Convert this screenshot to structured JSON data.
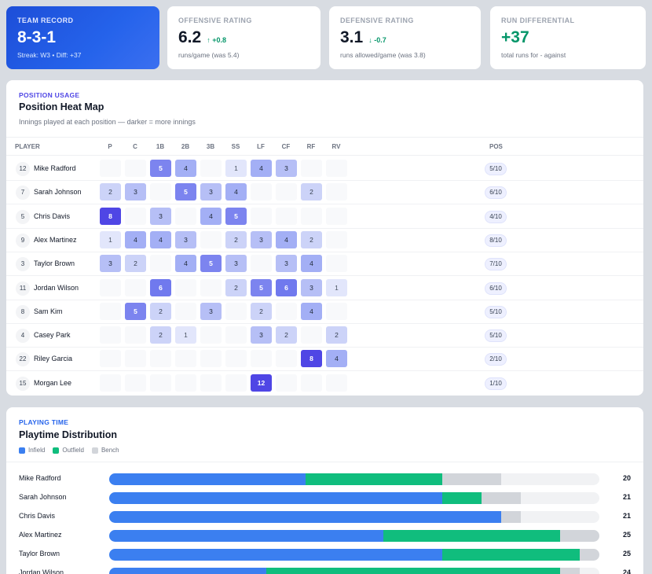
{
  "kpis": [
    {
      "label": "TEAM RECORD",
      "value": "8-3-1",
      "delta": "",
      "sub": "Streak: W3 • Diff: +37"
    },
    {
      "label": "OFFENSIVE RATING",
      "value": "6.2",
      "delta": "↑ +0.8",
      "sub": "runs/game (was 5.4)"
    },
    {
      "label": "DEFENSIVE RATING",
      "value": "3.1",
      "delta": "↓ -0.7",
      "sub": "runs allowed/game (was 3.8)"
    },
    {
      "label": "RUN DIFFERENTIAL",
      "value": "+37",
      "delta": "",
      "sub": "total runs for - against"
    }
  ],
  "heatmap": {
    "eyebrow": "POSITION USAGE",
    "title": "Position Heat Map",
    "subtitle": "Innings played at each position — darker = more innings",
    "headers": {
      "player": "PLAYER",
      "positions": [
        "P",
        "C",
        "1B",
        "2B",
        "3B",
        "SS",
        "LF",
        "CF",
        "RF",
        "RV"
      ],
      "pos": "POS"
    },
    "rows": [
      {
        "num": "12",
        "name": "Mike Radford",
        "cells": [
          0,
          0,
          5,
          4,
          0,
          1,
          4,
          3,
          0,
          0
        ],
        "pos": "5/10"
      },
      {
        "num": "7",
        "name": "Sarah Johnson",
        "cells": [
          2,
          3,
          0,
          5,
          3,
          4,
          0,
          0,
          2,
          0
        ],
        "pos": "6/10"
      },
      {
        "num": "5",
        "name": "Chris Davis",
        "cells": [
          8,
          0,
          3,
          0,
          4,
          5,
          0,
          0,
          0,
          0
        ],
        "pos": "4/10"
      },
      {
        "num": "9",
        "name": "Alex Martinez",
        "cells": [
          1,
          4,
          4,
          3,
          0,
          2,
          3,
          4,
          2,
          0
        ],
        "pos": "8/10"
      },
      {
        "num": "3",
        "name": "Taylor Brown",
        "cells": [
          3,
          2,
          0,
          4,
          5,
          3,
          0,
          3,
          4,
          0
        ],
        "pos": "7/10"
      },
      {
        "num": "11",
        "name": "Jordan Wilson",
        "cells": [
          0,
          0,
          6,
          0,
          0,
          2,
          5,
          6,
          3,
          1
        ],
        "pos": "6/10"
      },
      {
        "num": "8",
        "name": "Sam Kim",
        "cells": [
          0,
          5,
          2,
          0,
          3,
          0,
          2,
          0,
          4,
          0
        ],
        "pos": "5/10"
      },
      {
        "num": "4",
        "name": "Casey Park",
        "cells": [
          0,
          0,
          2,
          1,
          0,
          0,
          3,
          2,
          0,
          2
        ],
        "pos": "5/10"
      },
      {
        "num": "22",
        "name": "Riley Garcia",
        "cells": [
          0,
          0,
          0,
          0,
          0,
          0,
          0,
          0,
          8,
          4
        ],
        "pos": "2/10"
      },
      {
        "num": "15",
        "name": "Morgan Lee",
        "cells": [
          0,
          0,
          0,
          0,
          0,
          0,
          12,
          0,
          0,
          0
        ],
        "pos": "1/10"
      }
    ]
  },
  "playtime": {
    "eyebrow": "PLAYING TIME",
    "title": "Playtime Distribution",
    "legend": [
      {
        "label": "Infield",
        "color": "#3b7ff0"
      },
      {
        "label": "Outfield",
        "color": "#10bd7d"
      },
      {
        "label": "Bench",
        "color": "#d2d5da"
      }
    ],
    "scale_max": 25,
    "rows": [
      {
        "name": "Mike Radford",
        "infield": 10,
        "outfield": 7,
        "bench": 3,
        "total": "20"
      },
      {
        "name": "Sarah Johnson",
        "infield": 17,
        "outfield": 2,
        "bench": 2,
        "total": "21"
      },
      {
        "name": "Chris Davis",
        "infield": 20,
        "outfield": 0,
        "bench": 1,
        "total": "21"
      },
      {
        "name": "Alex Martinez",
        "infield": 14,
        "outfield": 9,
        "bench": 2,
        "total": "25"
      },
      {
        "name": "Taylor Brown",
        "infield": 17,
        "outfield": 7,
        "bench": 1,
        "total": "25"
      },
      {
        "name": "Jordan Wilson",
        "infield": 8,
        "outfield": 15,
        "bench": 1,
        "total": "24"
      }
    ]
  }
}
